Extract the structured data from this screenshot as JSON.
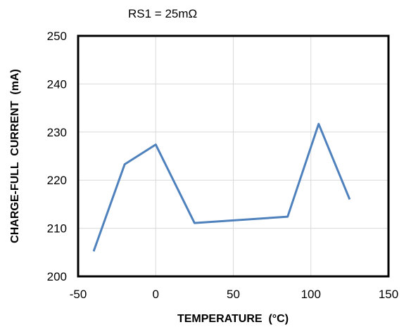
{
  "chart_data": {
    "type": "line",
    "annotation": "RS1 = 25mΩ",
    "xlabel": "TEMPERATURE  (°C)",
    "ylabel": "CHARGE-FULL  CURRENT  (mA)",
    "xlim": [
      -50,
      150
    ],
    "ylim": [
      200,
      250
    ],
    "xticks": [
      "-50",
      "0",
      "50",
      "100",
      "150"
    ],
    "yticks": [
      "200",
      "210",
      "220",
      "230",
      "240",
      "250"
    ],
    "grid": true,
    "legend": "none",
    "series": [
      {
        "color": "#4F81BD",
        "x": [
          -40,
          -20,
          0,
          25,
          85,
          105,
          125
        ],
        "y": [
          205.2,
          223.3,
          227.4,
          211.1,
          212.4,
          231.7,
          216.0
        ]
      }
    ]
  }
}
